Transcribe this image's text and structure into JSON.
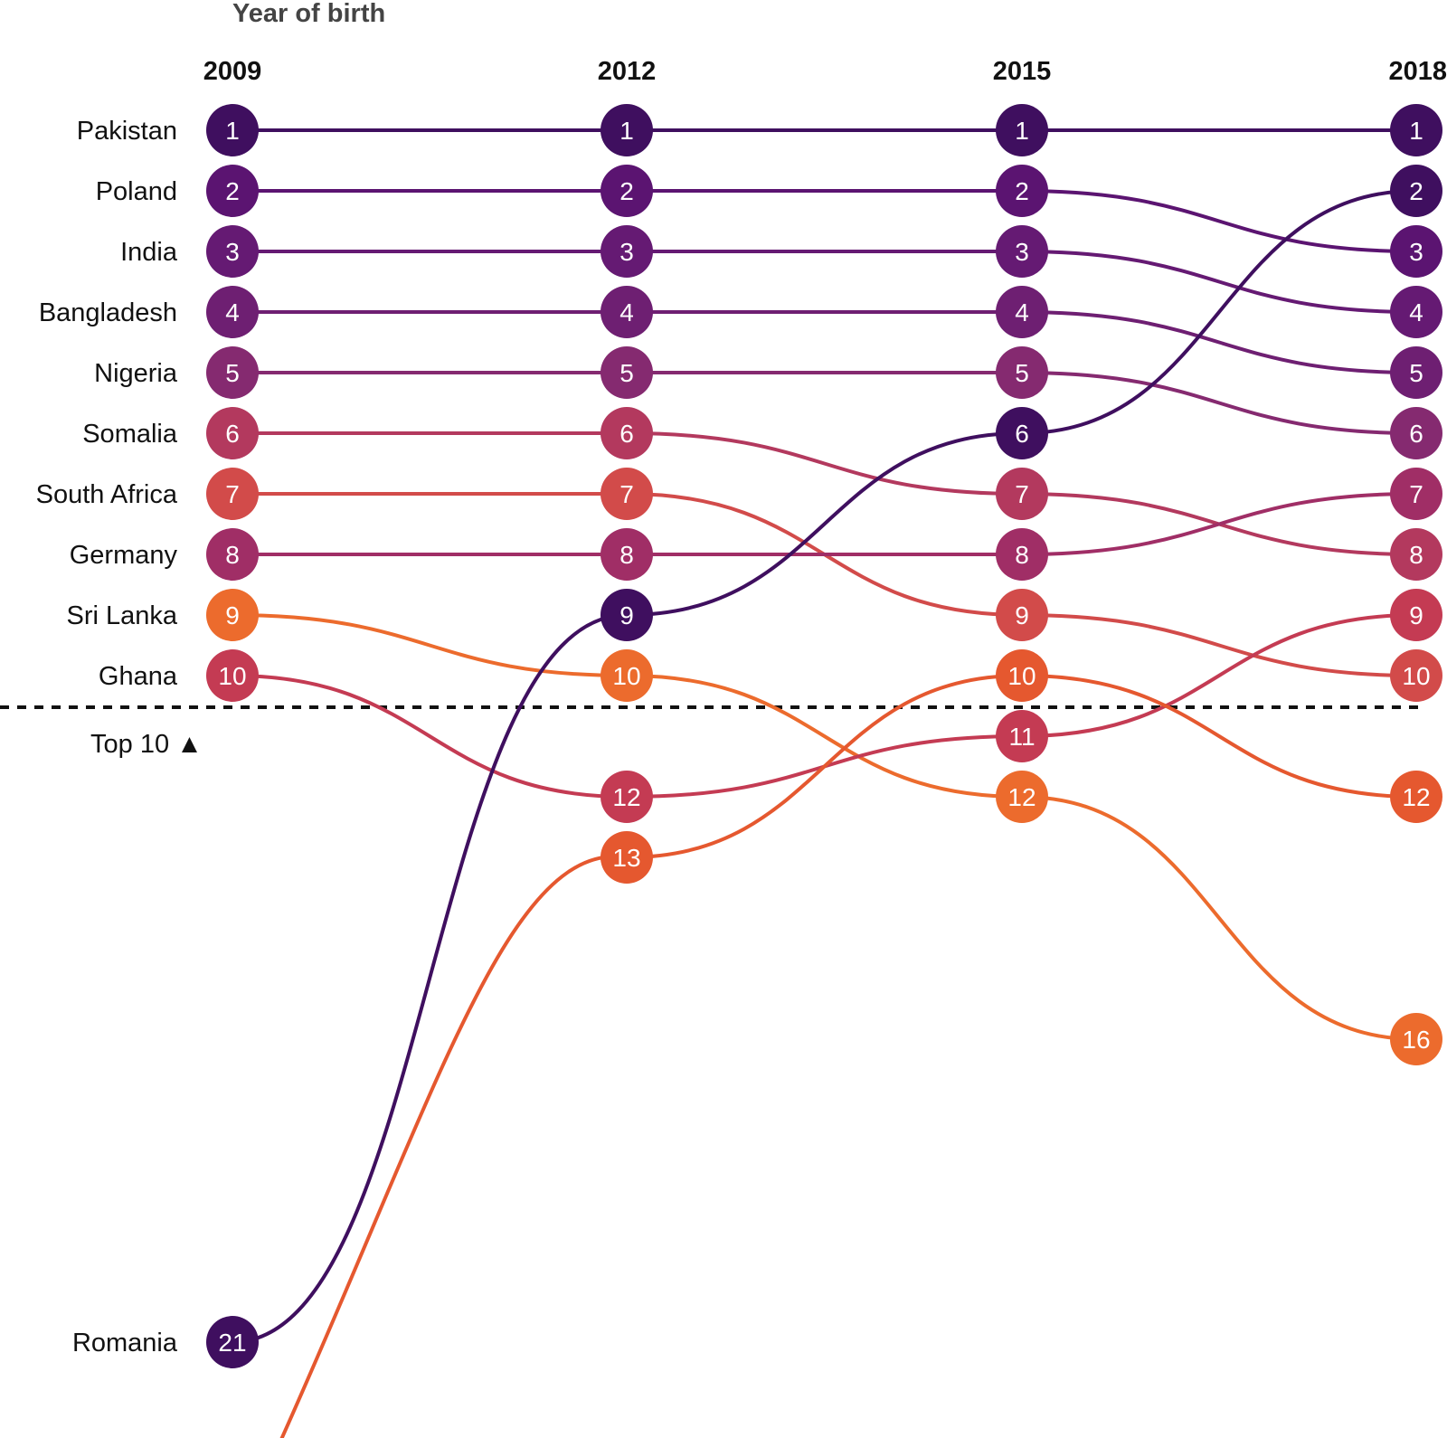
{
  "chart_data": {
    "type": "line",
    "subtype": "bump",
    "title": "Year of birth",
    "x": [
      "2009",
      "2012",
      "2015",
      "2018"
    ],
    "threshold": {
      "label": "Top 10 ▲",
      "rank_after": 10
    },
    "series": [
      {
        "name": "Pakistan",
        "ranks": [
          1,
          1,
          1,
          1
        ],
        "color": "#3f0f5f"
      },
      {
        "name": "Poland",
        "ranks": [
          2,
          2,
          2,
          3
        ],
        "color": "#5b1471"
      },
      {
        "name": "India",
        "ranks": [
          3,
          3,
          3,
          4
        ],
        "color": "#651a73"
      },
      {
        "name": "Bangladesh",
        "ranks": [
          4,
          4,
          4,
          5
        ],
        "color": "#6e1f72"
      },
      {
        "name": "Nigeria",
        "ranks": [
          5,
          5,
          5,
          6
        ],
        "color": "#852a70"
      },
      {
        "name": "Somalia",
        "ranks": [
          6,
          6,
          7,
          8
        ],
        "color": "#b3395e"
      },
      {
        "name": "South Africa",
        "ranks": [
          7,
          7,
          9,
          10
        ],
        "color": "#d24b4a"
      },
      {
        "name": "Germany",
        "ranks": [
          8,
          8,
          8,
          7
        ],
        "color": "#a02e66"
      },
      {
        "name": "Sri Lanka",
        "ranks": [
          9,
          10,
          12,
          16
        ],
        "color": "#ec6b2d"
      },
      {
        "name": "Ghana",
        "ranks": [
          10,
          12,
          11,
          9
        ],
        "color": "#c43b53"
      },
      {
        "name": "Romania",
        "ranks": [
          21,
          9,
          6,
          2
        ],
        "color": "#3f0f5f"
      },
      {
        "name": "",
        "ranks": [
          null,
          13,
          10,
          12
        ],
        "color": "#e5582f"
      }
    ]
  }
}
